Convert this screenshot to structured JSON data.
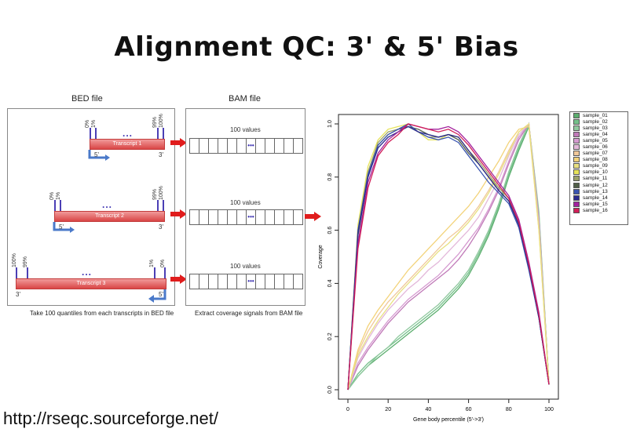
{
  "title": "Alignment QC: 3' & 5' Bias",
  "url": "http://rseqc.sourceforge.net/",
  "bed": {
    "label": "BED file",
    "caption": "Take 100 quantiles from each transcripts in BED file",
    "transcripts": [
      {
        "name": "Transcript 1",
        "left_end": "5'",
        "right_end": "3'",
        "ticks": [
          "0%",
          "1%",
          "...",
          "99%",
          "100%"
        ]
      },
      {
        "name": "Transcript 2",
        "left_end": "5'",
        "right_end": "3'",
        "ticks": [
          "0%",
          "1%",
          "...",
          "99%",
          "100%"
        ]
      },
      {
        "name": "Transcript 3",
        "left_end": "3'",
        "right_end": "5'",
        "ticks": [
          "100%",
          "99%",
          "...",
          "1%",
          "0%"
        ]
      }
    ]
  },
  "bam": {
    "label": "BAM file",
    "caption": "Extract coverage signals from BAM file",
    "rows": [
      {
        "label": "100 values"
      },
      {
        "label": "100 values"
      },
      {
        "label": "100 values"
      }
    ]
  },
  "chart_data": {
    "type": "line",
    "xlabel": "Gene body percentile (5'->3')",
    "ylabel": "Coverage",
    "xlim": [
      0,
      100
    ],
    "ylim": [
      0,
      1
    ],
    "xticks": [
      0,
      20,
      40,
      60,
      80,
      100
    ],
    "yticks": [
      0.0,
      0.2,
      0.4,
      0.6,
      0.8,
      1.0
    ],
    "legend_position": "right-outside",
    "x": [
      0,
      5,
      10,
      15,
      20,
      25,
      30,
      35,
      40,
      45,
      50,
      55,
      60,
      65,
      70,
      75,
      80,
      85,
      90,
      95,
      100
    ],
    "series": [
      {
        "name": "sample_01",
        "color": "#5cae6e",
        "values": [
          0.0,
          0.05,
          0.09,
          0.12,
          0.15,
          0.18,
          0.21,
          0.24,
          0.27,
          0.3,
          0.34,
          0.38,
          0.43,
          0.5,
          0.58,
          0.68,
          0.8,
          0.9,
          0.99,
          0.65,
          0.02
        ]
      },
      {
        "name": "sample_02",
        "color": "#74c08a",
        "values": [
          0.0,
          0.06,
          0.1,
          0.13,
          0.16,
          0.19,
          0.22,
          0.25,
          0.28,
          0.31,
          0.35,
          0.39,
          0.44,
          0.51,
          0.59,
          0.69,
          0.81,
          0.91,
          1.0,
          0.66,
          0.02
        ]
      },
      {
        "name": "sample_03",
        "color": "#90c99f",
        "values": [
          0.0,
          0.05,
          0.09,
          0.13,
          0.16,
          0.2,
          0.23,
          0.26,
          0.29,
          0.32,
          0.36,
          0.4,
          0.45,
          0.52,
          0.6,
          0.7,
          0.82,
          0.92,
          1.0,
          0.67,
          0.02
        ]
      },
      {
        "name": "sample_04",
        "color": "#c07ab8",
        "values": [
          0.0,
          0.09,
          0.15,
          0.2,
          0.25,
          0.29,
          0.33,
          0.36,
          0.39,
          0.42,
          0.45,
          0.49,
          0.54,
          0.6,
          0.67,
          0.75,
          0.85,
          0.94,
          1.0,
          0.64,
          0.02
        ]
      },
      {
        "name": "sample_05",
        "color": "#d59ad0",
        "values": [
          0.0,
          0.1,
          0.16,
          0.21,
          0.26,
          0.3,
          0.34,
          0.37,
          0.4,
          0.43,
          0.47,
          0.51,
          0.56,
          0.61,
          0.68,
          0.76,
          0.86,
          0.95,
          1.0,
          0.63,
          0.02
        ]
      },
      {
        "name": "sample_06",
        "color": "#e3b8da",
        "values": [
          0.0,
          0.12,
          0.19,
          0.25,
          0.3,
          0.34,
          0.38,
          0.41,
          0.45,
          0.48,
          0.52,
          0.56,
          0.6,
          0.65,
          0.72,
          0.79,
          0.88,
          0.96,
          1.0,
          0.62,
          0.02
        ]
      },
      {
        "name": "sample_07",
        "color": "#f0c89a",
        "values": [
          0.0,
          0.14,
          0.22,
          0.28,
          0.33,
          0.37,
          0.41,
          0.45,
          0.49,
          0.53,
          0.57,
          0.6,
          0.64,
          0.69,
          0.75,
          0.82,
          0.9,
          0.97,
          1.0,
          0.61,
          0.02
        ]
      },
      {
        "name": "sample_08",
        "color": "#f3d37a",
        "values": [
          0.0,
          0.15,
          0.24,
          0.3,
          0.35,
          0.4,
          0.45,
          0.49,
          0.53,
          0.57,
          0.61,
          0.65,
          0.69,
          0.74,
          0.8,
          0.86,
          0.93,
          0.98,
          0.99,
          0.6,
          0.02
        ]
      },
      {
        "name": "sample_09",
        "color": "#e8e080",
        "values": [
          0.0,
          0.13,
          0.2,
          0.26,
          0.31,
          0.36,
          0.4,
          0.44,
          0.48,
          0.52,
          0.55,
          0.59,
          0.63,
          0.68,
          0.74,
          0.81,
          0.89,
          0.97,
          1.0,
          0.6,
          0.02
        ]
      },
      {
        "name": "sample_10",
        "color": "#e6e35a",
        "values": [
          0.0,
          0.62,
          0.84,
          0.94,
          0.98,
          0.99,
          1.0,
          0.97,
          0.94,
          0.94,
          0.96,
          0.95,
          0.9,
          0.85,
          0.8,
          0.76,
          0.72,
          0.63,
          0.47,
          0.28,
          0.02
        ]
      },
      {
        "name": "sample_11",
        "color": "#9aa06a",
        "values": [
          0.0,
          0.6,
          0.82,
          0.93,
          0.97,
          0.98,
          0.99,
          0.97,
          0.95,
          0.95,
          0.96,
          0.95,
          0.9,
          0.86,
          0.81,
          0.76,
          0.72,
          0.63,
          0.47,
          0.28,
          0.02
        ]
      },
      {
        "name": "sample_12",
        "color": "#505e48",
        "values": [
          0.0,
          0.58,
          0.8,
          0.92,
          0.96,
          0.98,
          0.99,
          0.98,
          0.96,
          0.95,
          0.96,
          0.94,
          0.89,
          0.85,
          0.8,
          0.75,
          0.71,
          0.62,
          0.46,
          0.27,
          0.02
        ]
      },
      {
        "name": "sample_13",
        "color": "#3b55b0",
        "values": [
          0.0,
          0.6,
          0.81,
          0.92,
          0.96,
          0.98,
          1.0,
          0.97,
          0.95,
          0.94,
          0.95,
          0.93,
          0.88,
          0.83,
          0.78,
          0.74,
          0.7,
          0.61,
          0.45,
          0.27,
          0.02
        ]
      },
      {
        "name": "sample_14",
        "color": "#2b2a8f",
        "values": [
          0.0,
          0.59,
          0.8,
          0.91,
          0.95,
          0.97,
          0.99,
          0.97,
          0.96,
          0.95,
          0.96,
          0.95,
          0.9,
          0.85,
          0.8,
          0.75,
          0.71,
          0.62,
          0.46,
          0.27,
          0.02
        ]
      },
      {
        "name": "sample_15",
        "color": "#a3229e",
        "values": [
          0.0,
          0.55,
          0.78,
          0.89,
          0.94,
          0.97,
          1.0,
          0.99,
          0.98,
          0.98,
          0.99,
          0.97,
          0.93,
          0.88,
          0.83,
          0.78,
          0.73,
          0.64,
          0.48,
          0.29,
          0.02
        ]
      },
      {
        "name": "sample_16",
        "color": "#d11f58",
        "values": [
          0.0,
          0.53,
          0.76,
          0.88,
          0.93,
          0.96,
          1.0,
          0.99,
          0.98,
          0.97,
          0.98,
          0.96,
          0.92,
          0.87,
          0.82,
          0.77,
          0.72,
          0.63,
          0.47,
          0.28,
          0.02
        ]
      }
    ]
  }
}
